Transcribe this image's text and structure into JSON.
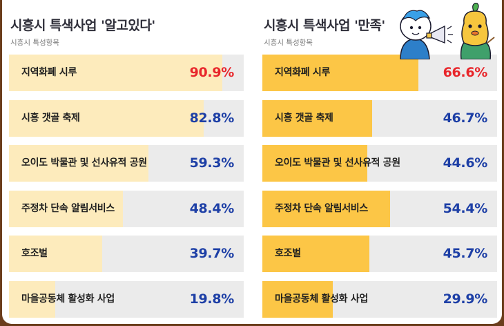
{
  "colors": {
    "left_bar": "#fdebbc",
    "right_bar": "#fcc646",
    "value_red": "#e8262b",
    "value_blue": "#1d3fa6",
    "row_bg": "#ebebeb"
  },
  "chart_data": [
    {
      "type": "bar",
      "orientation": "horizontal",
      "title": "시흥시 특색사업 '알고있다'",
      "subtitle": "시흥시 특성항목",
      "categories": [
        "지역화폐 시루",
        "시흥 갯골 축제",
        "오이도 박물관 및 선사유적 공원",
        "주정차 단속 알림서비스",
        "호조벌",
        "마을공동체 활성화 사업"
      ],
      "values": [
        90.9,
        82.8,
        59.3,
        48.4,
        39.7,
        19.8
      ],
      "value_labels": [
        "90.9%",
        "82.8%",
        "59.3%",
        "48.4%",
        "39.7%",
        "19.8%"
      ],
      "xlim": [
        0,
        100
      ],
      "unit": "%"
    },
    {
      "type": "bar",
      "orientation": "horizontal",
      "title": "시흥시 특색사업 '만족'",
      "subtitle": "시흥시 특성항목",
      "categories": [
        "지역화폐 시루",
        "시흥 갯골 축제",
        "오이도 박물관 및 선사유적 공원",
        "주정차 단속 알림서비스",
        "호조벌",
        "마을공동체 활성화 사업"
      ],
      "values": [
        66.6,
        46.7,
        44.6,
        54.4,
        45.7,
        29.9
      ],
      "value_labels": [
        "66.6%",
        "46.7%",
        "44.6%",
        "54.4%",
        "45.7%",
        "29.9%"
      ],
      "xlim": [
        0,
        100
      ],
      "unit": "%"
    }
  ],
  "mascot": {
    "icon": "mascot-characters-illustration"
  }
}
